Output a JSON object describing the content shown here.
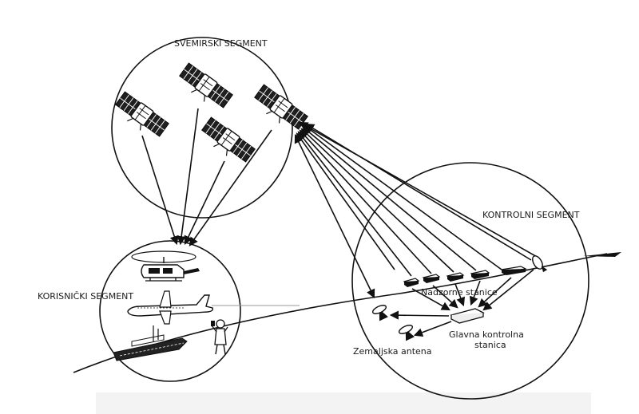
{
  "labels": {
    "space_segment": "SVEMIRSKI SEGMENT",
    "control_segment": "KONTROLNI SEGMENT",
    "user_segment": "KORISNIČKI SEGMENT",
    "monitor_stations": "Nadzorne stanice",
    "master_control_line1": "Glavna kontrolna",
    "master_control_line2": "stanica",
    "ground_antenna": "Zemaljska antena"
  },
  "colors": {
    "ink": "#111111",
    "background": "#ffffff",
    "haze": "#f3f3f3"
  },
  "icons": [
    "satellite-icon",
    "helicopter-icon",
    "airplane-icon",
    "ship-icon",
    "person-icon",
    "antenna-icon",
    "station-icon"
  ]
}
